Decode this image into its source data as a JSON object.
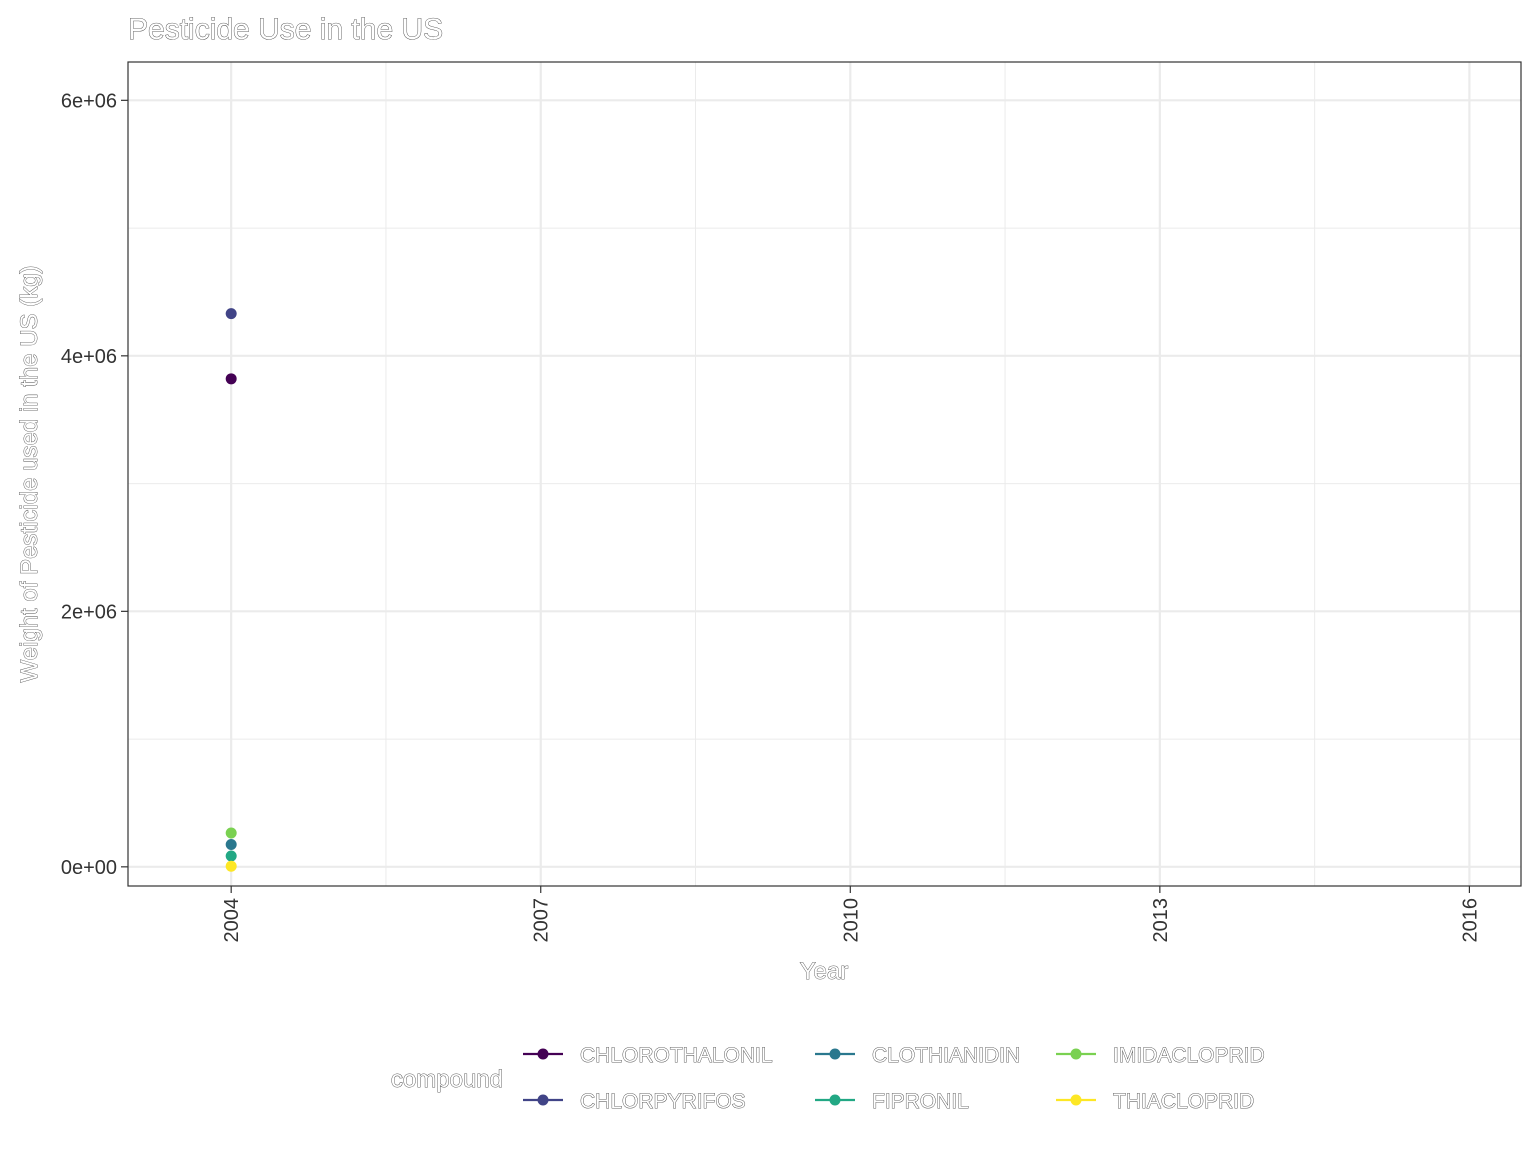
{
  "chart_data": {
    "type": "scatter",
    "title": "Pesticide Use in the US",
    "xlabel": "Year",
    "ylabel": "Weight of Pesticide used in the US (kg)",
    "xlim": [
      2003,
      2016.5
    ],
    "ylim": [
      -150000,
      6300000
    ],
    "x_ticks": [
      2004,
      2007,
      2010,
      2013,
      2016
    ],
    "y_ticks": [
      0,
      2000000,
      4000000,
      6000000
    ],
    "y_tick_labels": [
      "0e+00",
      "2e+06",
      "4e+06",
      "6e+06"
    ],
    "grid": true,
    "legend": {
      "title": "compound",
      "position": "bottom"
    },
    "series": [
      {
        "name": "CHLOROTHALONIL",
        "color": "#440154",
        "x": [
          2004
        ],
        "y": [
          3820000
        ]
      },
      {
        "name": "CHLORPYRIFOS",
        "color": "#414487",
        "x": [
          2004
        ],
        "y": [
          4330000
        ]
      },
      {
        "name": "CLOTHIANIDIN",
        "color": "#2A788E",
        "x": [
          2004
        ],
        "y": [
          175000
        ]
      },
      {
        "name": "FIPRONIL",
        "color": "#22A884",
        "x": [
          2004
        ],
        "y": [
          85000
        ]
      },
      {
        "name": "IMIDACLOPRID",
        "color": "#7AD151",
        "x": [
          2004
        ],
        "y": [
          265000
        ]
      },
      {
        "name": "THIACLOPRID",
        "color": "#FDE725",
        "x": [
          2004
        ],
        "y": [
          5000
        ]
      }
    ]
  }
}
